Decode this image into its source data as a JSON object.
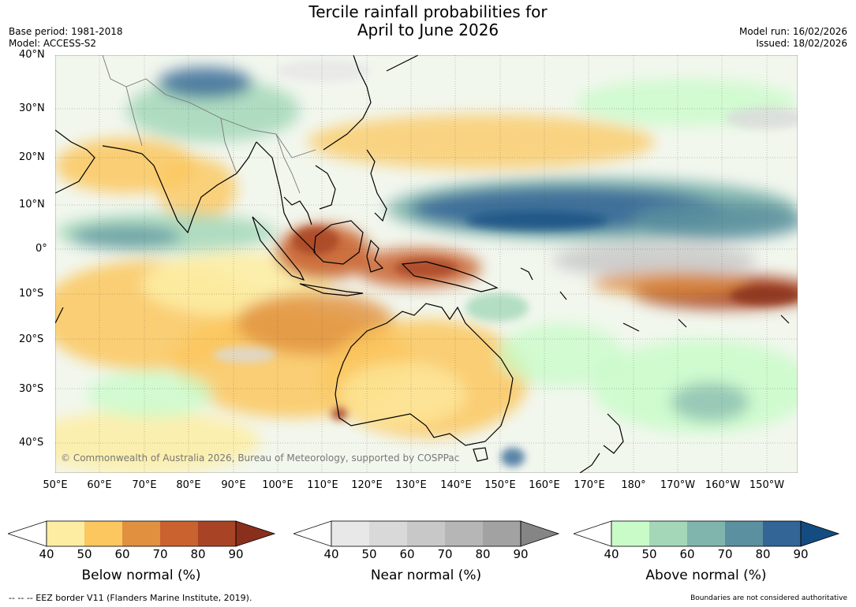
{
  "header": {
    "title_line1": "Tercile rainfall probabilities for",
    "title_line2": "April to June 2026",
    "base_period": "Base period: 1981-2018",
    "model": "Model: ACCESS-S2",
    "model_run": "Model run: 16/02/2026",
    "issued": "Issued: 18/02/2026"
  },
  "map": {
    "lat_labels": [
      "40°N",
      "30°N",
      "20°N",
      "10°N",
      "0°",
      "10°S",
      "20°S",
      "30°S",
      "40°S"
    ],
    "lon_labels": [
      "50°E",
      "60°E",
      "70°E",
      "80°E",
      "90°E",
      "100°E",
      "110°E",
      "120°E",
      "130°E",
      "140°E",
      "150°E",
      "160°E",
      "170°E",
      "180°",
      "170°W",
      "160°W",
      "150°W"
    ],
    "copyright": "© Commonwealth of Australia 2026, Bureau of Meteorology, supported by COSPPac"
  },
  "legend": {
    "below": {
      "title": "Below normal (%)",
      "ticks": [
        "40",
        "50",
        "60",
        "70",
        "80",
        "90"
      ],
      "colors": [
        "#fdeda3",
        "#fbc75e",
        "#e0903f",
        "#c9622e",
        "#a84425"
      ],
      "extend_color": "#8a2f1c"
    },
    "near": {
      "title": "Near normal (%)",
      "ticks": [
        "40",
        "50",
        "60",
        "70",
        "80",
        "90"
      ],
      "colors": [
        "#e8e8e8",
        "#d9d9d9",
        "#c8c8c8",
        "#b6b6b6",
        "#a2a2a2"
      ],
      "extend_color": "#858585"
    },
    "above": {
      "title": "Above normal (%)",
      "ticks": [
        "40",
        "50",
        "60",
        "70",
        "80",
        "90"
      ],
      "colors": [
        "#c9fbc9",
        "#a3d7b8",
        "#80b5ad",
        "#5a909f",
        "#336596"
      ],
      "extend_color": "#134c80"
    }
  },
  "footer": {
    "eez_note": "--  --  -- EEZ border V11 (Flanders Marine Institute, 2019).",
    "boundary_note": "Boundaries are not considered authoritative"
  }
}
